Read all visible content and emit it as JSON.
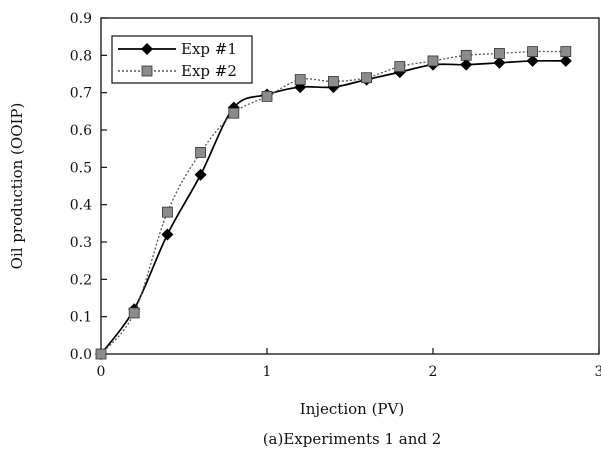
{
  "chart_data": {
    "type": "line",
    "title": "",
    "caption": "(a)Experiments 1 and 2",
    "xlabel": "Injection (PV)",
    "ylabel": "Oil production (OOIP)",
    "xlim": [
      0,
      3
    ],
    "ylim": [
      0,
      0.9
    ],
    "x_ticks": [
      0,
      1,
      2,
      3
    ],
    "x_tick_labels": [
      "0",
      "1",
      "2",
      "3"
    ],
    "y_ticks": [
      0,
      0.1,
      0.2,
      0.3,
      0.4,
      0.5,
      0.6,
      0.7,
      0.8,
      0.9
    ],
    "y_tick_labels": [
      "0.0",
      "0.1",
      "0.2",
      "0.3",
      "0.4",
      "0.5",
      "0.6",
      "0.7",
      "0.8",
      "0.9"
    ],
    "grid": false,
    "legend_position": "top-left",
    "series": [
      {
        "name": "Exp #1",
        "marker": "diamond",
        "line_style": "solid",
        "color": "#000000",
        "x": [
          0,
          0.2,
          0.4,
          0.6,
          0.8,
          1.0,
          1.2,
          1.4,
          1.6,
          1.8,
          2.0,
          2.2,
          2.4,
          2.6,
          2.8
        ],
        "y": [
          0.0,
          0.12,
          0.32,
          0.48,
          0.66,
          0.695,
          0.715,
          0.715,
          0.735,
          0.755,
          0.775,
          0.775,
          0.78,
          0.785,
          0.785
        ]
      },
      {
        "name": "Exp #2",
        "marker": "square",
        "line_style": "dotted",
        "color": "#555555",
        "x": [
          0,
          0.2,
          0.4,
          0.6,
          0.8,
          1.0,
          1.2,
          1.4,
          1.6,
          1.8,
          2.0,
          2.2,
          2.4,
          2.6,
          2.8
        ],
        "y": [
          0.0,
          0.11,
          0.38,
          0.54,
          0.645,
          0.69,
          0.735,
          0.73,
          0.74,
          0.77,
          0.785,
          0.8,
          0.805,
          0.81,
          0.81
        ]
      }
    ]
  }
}
